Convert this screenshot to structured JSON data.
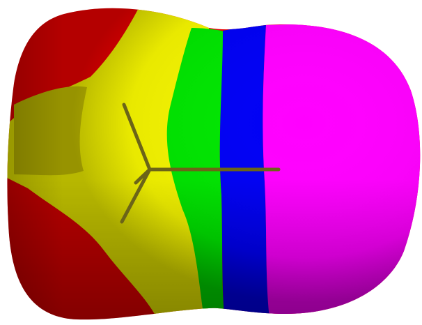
{
  "image": {
    "background_color": "#ffffff",
    "colors": {
      "red": "#f00000",
      "yellow": "#f5f500",
      "green": "#00e600",
      "blue": "#0000f5",
      "magenta": "#ff00ff",
      "skeleton": "#6b6418"
    }
  }
}
